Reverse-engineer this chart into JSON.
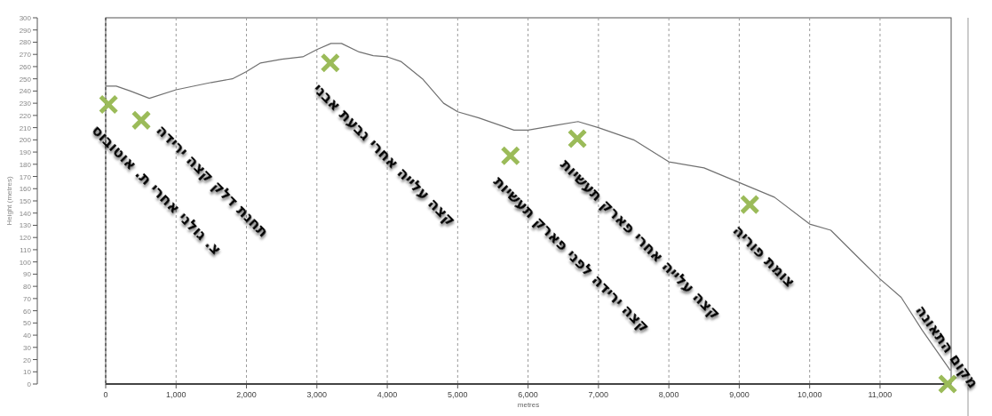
{
  "chart_data": {
    "type": "line",
    "xlabel": "metres",
    "ylabel": "Height (metres)",
    "xlim": [
      0,
      12010
    ],
    "ylim": [
      0,
      300
    ],
    "xticks": [
      0,
      {
        "value": 1000,
        "label": "1,000"
      },
      {
        "value": 2000,
        "label": "2,000"
      },
      {
        "value": 3000,
        "label": "3,000"
      },
      {
        "value": 4000,
        "label": "4,000"
      },
      {
        "value": 5000,
        "label": "5,000"
      },
      {
        "value": 6000,
        "label": "6,000"
      },
      {
        "value": 7000,
        "label": "7,000"
      },
      {
        "value": 8000,
        "label": "8,000"
      },
      {
        "value": 9000,
        "label": "9,000"
      },
      {
        "value": 10000,
        "label": "10,000"
      },
      {
        "value": 11000,
        "label": "11,000"
      }
    ],
    "yticks": [
      0,
      10,
      20,
      30,
      40,
      50,
      60,
      70,
      80,
      90,
      100,
      110,
      120,
      130,
      140,
      150,
      160,
      170,
      180,
      190,
      200,
      210,
      220,
      230,
      240,
      250,
      260,
      270,
      280,
      290,
      300
    ],
    "grid": "x",
    "series": [
      {
        "color": "#707070",
        "marker": "none",
        "x": [
          0,
          150,
          350,
          620,
          1000,
          1500,
          1800,
          2000,
          2200,
          2500,
          2800,
          3000,
          3200,
          3350,
          3600,
          3800,
          4000,
          4200,
          4500,
          4800,
          5000,
          5300,
          5600,
          5800,
          6000,
          6400,
          6710,
          7000,
          7500,
          8000,
          8500,
          9000,
          9500,
          10000,
          10300,
          10700,
          11000,
          11300,
          11600,
          12000
        ],
        "values": [
          244,
          244,
          240,
          234,
          241,
          247,
          250,
          256,
          263,
          266,
          268,
          274,
          279,
          279,
          272,
          269,
          268,
          264,
          250,
          230,
          223,
          218,
          212,
          208,
          208,
          212,
          215,
          210,
          200,
          182,
          177,
          165,
          153,
          131,
          126,
          103,
          86,
          71,
          44,
          11
        ]
      },
      {
        "type": "scatter",
        "color": "#9bbb59",
        "marker": "cross",
        "x": [
          40,
          505,
          3190,
          5750,
          6700,
          9150,
          11960
        ],
        "values": [
          229,
          216,
          263,
          187,
          201,
          147,
          0
        ]
      }
    ],
    "annotations": [
      {
        "text": "צ. גולני אחרי ת. אוטובוס",
        "x": 40,
        "y": 229
      },
      {
        "text": "תחנת דלק קצה ירידה",
        "x": 505,
        "y": 216
      },
      {
        "text": "קצה עלייה אחרי גבעת אבני",
        "x": 3190,
        "y": 263
      },
      {
        "text": "קצה ירידה לפני פארק תעשיות",
        "x": 5750,
        "y": 187
      },
      {
        "text": "קצה עלייה אחרי פארק תעשיות",
        "x": 6700,
        "y": 201
      },
      {
        "text": "צומת פוריה",
        "x": 9150,
        "y": 147
      },
      {
        "text": "מקום התאונה",
        "x": 11960,
        "y": 0
      }
    ]
  }
}
